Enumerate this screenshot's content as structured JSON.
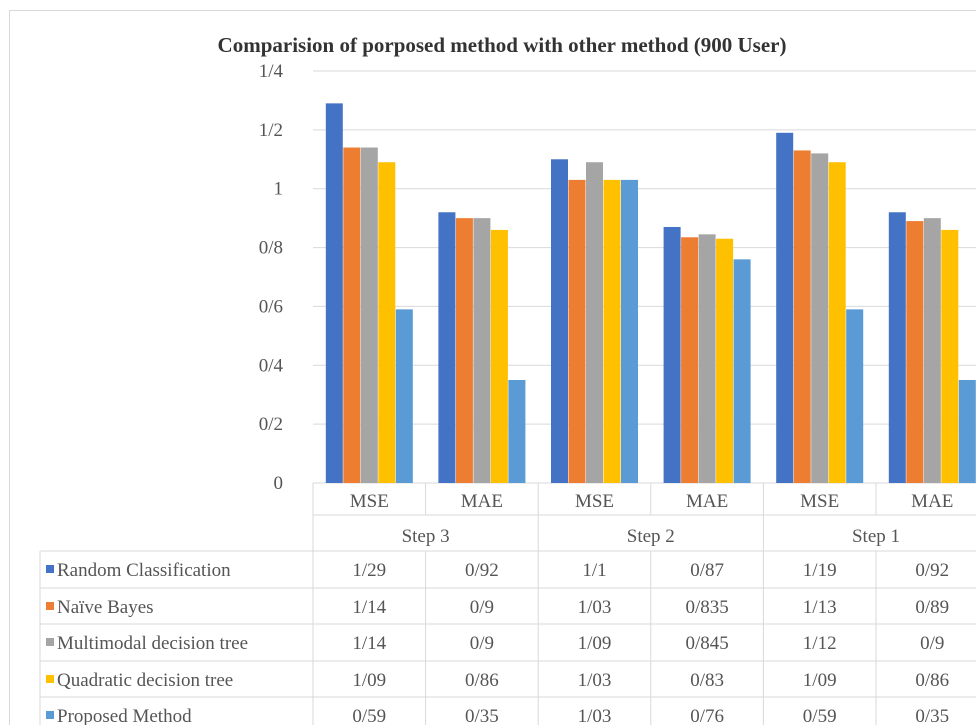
{
  "chart_data": {
    "type": "bar",
    "title": "Comparision  of  porposed  method  with  other  method  (900 User)",
    "groups": [
      {
        "label": "Step 3",
        "categories": [
          "MSE",
          "MAE"
        ]
      },
      {
        "label": "Step 2",
        "categories": [
          "MSE",
          "MAE"
        ]
      },
      {
        "label": "Step 1",
        "categories": [
          "MSE",
          "MAE"
        ]
      }
    ],
    "ylim": [
      0,
      1.4
    ],
    "y_ticks": [
      {
        "value": 0,
        "label": "0"
      },
      {
        "value": 0.2,
        "label": "0/2"
      },
      {
        "value": 0.4,
        "label": "0/4"
      },
      {
        "value": 0.6,
        "label": "0/6"
      },
      {
        "value": 0.8,
        "label": "0/8"
      },
      {
        "value": 1.0,
        "label": "1"
      },
      {
        "value": 1.2,
        "label": "1/2"
      },
      {
        "value": 1.4,
        "label": "1/4"
      }
    ],
    "grid": true,
    "legend": "data-table",
    "series": [
      {
        "name": "Random Classification",
        "color": "#4472c4",
        "values": [
          1.29,
          0.92,
          1.1,
          0.87,
          1.19,
          0.92
        ],
        "labels": [
          "1/29",
          "0/92",
          "1/1",
          "0/87",
          "1/19",
          "0/92"
        ]
      },
      {
        "name": "Naïve Bayes",
        "color": "#ed7d31",
        "values": [
          1.14,
          0.9,
          1.03,
          0.835,
          1.13,
          0.89
        ],
        "labels": [
          "1/14",
          "0/9",
          "1/03",
          "0/835",
          "1/13",
          "0/89"
        ]
      },
      {
        "name": "Multimodal decision tree",
        "color": "#a5a5a5",
        "values": [
          1.14,
          0.9,
          1.09,
          0.845,
          1.12,
          0.9
        ],
        "labels": [
          "1/14",
          "0/9",
          "1/09",
          "0/845",
          "1/12",
          "0/9"
        ]
      },
      {
        "name": "Quadratic decision tree",
        "color": "#ffc000",
        "values": [
          1.09,
          0.86,
          1.03,
          0.83,
          1.09,
          0.86
        ],
        "labels": [
          "1/09",
          "0/86",
          "1/03",
          "0/83",
          "1/09",
          "0/86"
        ]
      },
      {
        "name": "Proposed Method",
        "color": "#5b9bd5",
        "values": [
          0.59,
          0.35,
          1.03,
          0.76,
          0.59,
          0.35
        ],
        "labels": [
          "0/59",
          "0/35",
          "1/03",
          "0/76",
          "0/59",
          "0/35"
        ]
      }
    ]
  }
}
